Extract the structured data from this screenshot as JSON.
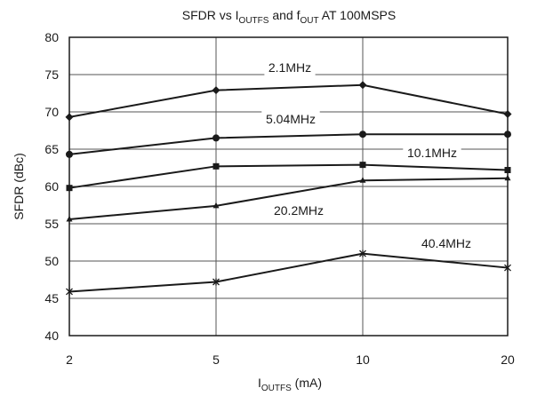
{
  "chart_data": {
    "type": "line",
    "title_parts": [
      {
        "text": "SFDR vs I"
      },
      {
        "text": "OUTFS",
        "sub": true
      },
      {
        "text": " and f"
      },
      {
        "text": "OUT",
        "sub": true
      },
      {
        "text": " AT 100MSPS"
      }
    ],
    "xlabel_parts": [
      {
        "text": "I"
      },
      {
        "text": "OUTFS",
        "sub": true
      },
      {
        "text": " (mA)"
      }
    ],
    "ylabel": "SFDR (dBc)",
    "x_categories": [
      "2",
      "5",
      "10",
      "20"
    ],
    "y_ticks": [
      "80",
      "75",
      "70",
      "65",
      "60",
      "55",
      "50",
      "45",
      "40"
    ],
    "ylim": [
      40,
      80
    ],
    "grid": true,
    "series": [
      {
        "name": "2.1MHz",
        "marker": "diamond",
        "values": [
          69.3,
          72.9,
          73.6,
          69.7
        ]
      },
      {
        "name": "5.04MHz",
        "marker": "circle",
        "values": [
          64.3,
          66.5,
          67.0,
          67.0
        ]
      },
      {
        "name": "10.1MHz",
        "marker": "square",
        "values": [
          59.8,
          62.7,
          62.9,
          62.2
        ]
      },
      {
        "name": "20.2MHz",
        "marker": "triangle",
        "values": [
          55.6,
          57.4,
          60.8,
          61.1
        ]
      },
      {
        "name": "40.4MHz",
        "marker": "star",
        "values": [
          45.9,
          47.2,
          51.0,
          49.1
        ]
      }
    ]
  }
}
